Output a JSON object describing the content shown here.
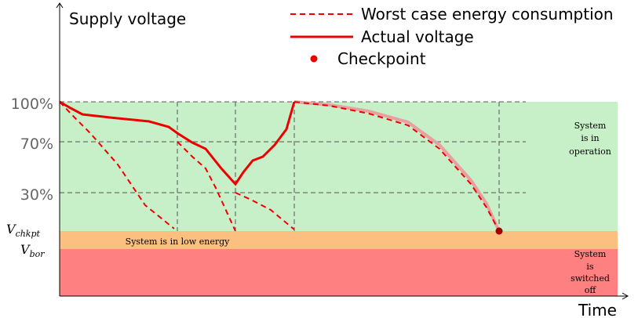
{
  "axes": {
    "y_label": "Supply voltage",
    "x_label": "Time"
  },
  "legend": [
    "Worst case energy consumption",
    "Actual voltage",
    "Checkpoint"
  ],
  "levels": [
    "100%",
    "70%",
    "30%"
  ],
  "thresholds": [
    {
      "main": "V",
      "sub": "chkpt"
    },
    {
      "main": "V",
      "sub": "bor"
    }
  ],
  "regions": {
    "operation": [
      "System",
      "is in",
      "operation"
    ],
    "low_energy": "System is in low energy",
    "off": [
      "System",
      "is",
      "switched",
      "off"
    ]
  }
}
